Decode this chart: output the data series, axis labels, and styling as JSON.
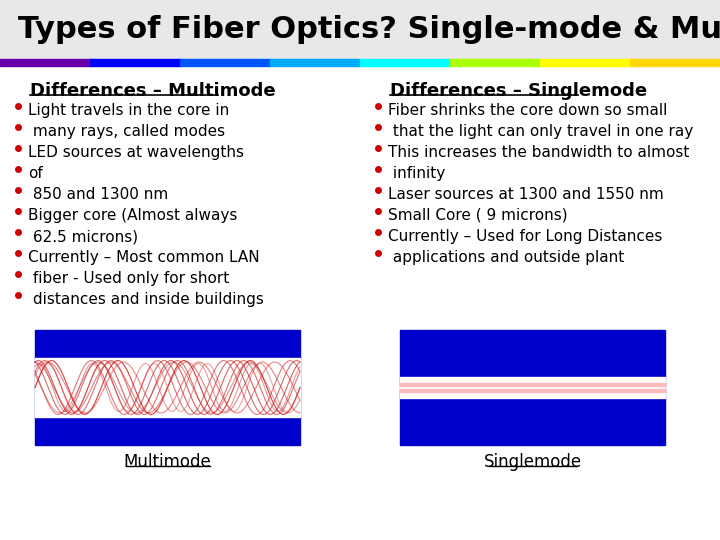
{
  "title": "Types of Fiber Optics? Single-mode & Multi-mode",
  "title_fontsize": 22,
  "title_color": "#000000",
  "slide_bg": "#ffffff",
  "rainbow_bar_colors": [
    "#6600AA",
    "#0000FF",
    "#0055FF",
    "#00AAFF",
    "#00FFFF",
    "#AAFF00",
    "#FFFF00",
    "#FFD700"
  ],
  "left_header": "Differences – Multimode",
  "right_header": "Differences – Singlemode",
  "left_bullets": [
    "Light travels in the core in",
    " many rays, called modes",
    "LED sources at wavelengths",
    "of",
    " 850 and 1300 nm",
    "Bigger core (Almost always",
    " 62.5 microns)",
    "Currently – Most common LAN",
    " fiber - Used only for short",
    " distances and inside buildings"
  ],
  "right_bullets": [
    "Fiber shrinks the core down so small",
    " that the light can only travel in one ray",
    "This increases the bandwidth to almost",
    " infinity",
    "Laser sources at 1300 and 1550 nm",
    "Small Core ( 9 microns)",
    "Currently – Used for Long Distances",
    " applications and outside plant"
  ],
  "bullet_color": "#cc0000",
  "text_color": "#000000",
  "bullet_fontsize": 11,
  "header_fontsize": 13,
  "multimode_label": "Multimode",
  "singlemode_label": "Singlemode",
  "fiber_blue": "#0000CC",
  "fiber_white": "#ffffff"
}
